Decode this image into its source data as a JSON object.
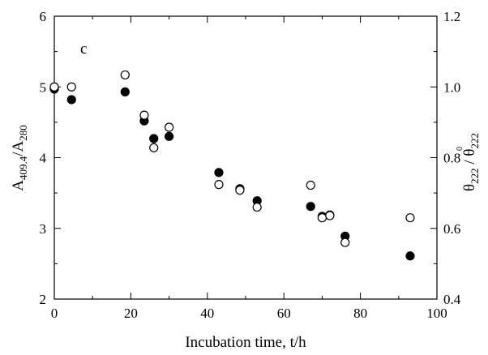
{
  "chart_data": {
    "type": "scatter",
    "panel_label": "c",
    "xlabel": "Incubation time,  t/h",
    "ylabel_left": {
      "main": "A",
      "sub1": "409.4",
      "slash": "/A",
      "sub2": "280"
    },
    "ylabel_right": {
      "main1": "θ",
      "sub1": "222",
      "slash": " / θ",
      "sub2": "222",
      "sup2": "0"
    },
    "xlim": [
      0,
      100
    ],
    "xticks": [
      "0",
      "20",
      "40",
      "60",
      "80",
      "100"
    ],
    "ylim_left": [
      2,
      6
    ],
    "yticks_left": [
      "2",
      "3",
      "4",
      "5",
      "6"
    ],
    "ylim_right": [
      0.4,
      1.2
    ],
    "yticks_right": [
      "0.4",
      "0.6",
      "0.8",
      "1.0",
      "1.2"
    ],
    "grid": false,
    "series": [
      {
        "marker": "filled-circle",
        "axis": "left",
        "x": [
          0,
          4.5,
          18.5,
          23.5,
          26,
          30,
          43,
          48.5,
          53,
          67,
          70,
          72,
          76,
          93
        ],
        "y": [
          4.97,
          4.82,
          4.93,
          4.52,
          4.27,
          4.3,
          3.79,
          3.56,
          3.39,
          3.31,
          3.17,
          3.19,
          2.89,
          2.61
        ]
      },
      {
        "marker": "open-circle",
        "axis": "right",
        "x": [
          0,
          4.5,
          18.5,
          23.5,
          26,
          30,
          43,
          48.5,
          53,
          67,
          70,
          72,
          76,
          93
        ],
        "y": [
          1.0,
          1.0,
          1.034,
          0.92,
          0.828,
          0.886,
          0.724,
          0.708,
          0.66,
          0.722,
          0.63,
          0.636,
          0.56,
          0.63
        ]
      }
    ]
  }
}
